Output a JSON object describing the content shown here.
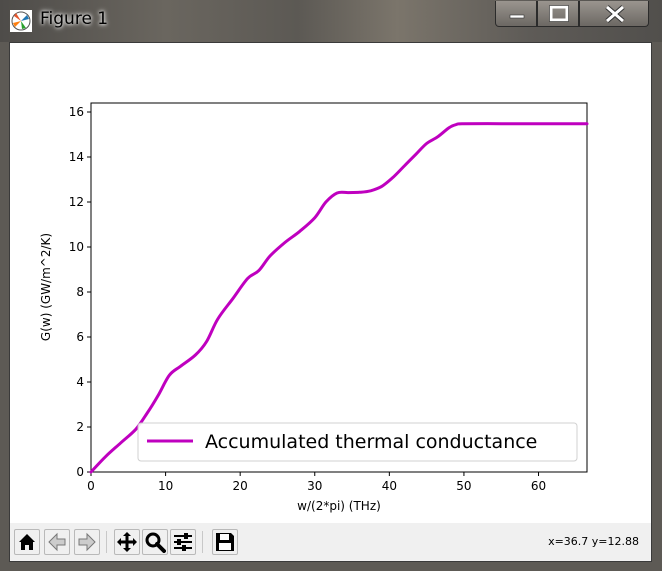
{
  "window": {
    "title": "Figure 1",
    "icon": "matplotlib-logo-icon",
    "controls": [
      "minimize-icon",
      "maximize-icon",
      "close-icon"
    ]
  },
  "toolbar": {
    "buttons": [
      {
        "name": "home-button",
        "icon": "home-icon"
      },
      {
        "name": "back-button",
        "icon": "arrow-left-icon"
      },
      {
        "name": "forward-button",
        "icon": "arrow-right-icon"
      },
      {
        "name": "pan-button",
        "icon": "move-icon"
      },
      {
        "name": "zoom-button",
        "icon": "magnifier-icon"
      },
      {
        "name": "configure-subplots-button",
        "icon": "sliders-icon"
      },
      {
        "name": "save-button",
        "icon": "floppy-icon"
      }
    ],
    "coords": "x=36.7 y=12.88"
  },
  "chart_data": {
    "type": "line",
    "title": "",
    "xlabel": "w/(2*pi) (THz)",
    "ylabel": "G(w) (GW/m^2/K)",
    "xlim": [
      0,
      66.5
    ],
    "ylim": [
      0,
      16.4
    ],
    "xticks": [
      0,
      10,
      20,
      30,
      40,
      50,
      60
    ],
    "yticks": [
      0,
      2,
      4,
      6,
      8,
      10,
      12,
      14,
      16
    ],
    "grid": false,
    "legend_position": "lower-right",
    "series": [
      {
        "name": "Accumulated thermal conductance",
        "color": "#bf00bf",
        "x": [
          0,
          2,
          4,
          6,
          7.5,
          9,
          10.5,
          12,
          14,
          15.5,
          17,
          19,
          21,
          22.5,
          24,
          26,
          28,
          30,
          31.5,
          33,
          34.5,
          36,
          37.5,
          39,
          40.5,
          42,
          43.5,
          45,
          46.5,
          48,
          49,
          50,
          55,
          60,
          66.5
        ],
        "y": [
          0,
          0.7,
          1.3,
          1.9,
          2.6,
          3.4,
          4.3,
          4.7,
          5.2,
          5.8,
          6.8,
          7.7,
          8.6,
          8.95,
          9.6,
          10.2,
          10.7,
          11.3,
          12.0,
          12.4,
          12.42,
          12.43,
          12.5,
          12.7,
          13.1,
          13.6,
          14.1,
          14.6,
          14.9,
          15.3,
          15.45,
          15.48,
          15.48,
          15.48,
          15.48
        ]
      }
    ]
  }
}
